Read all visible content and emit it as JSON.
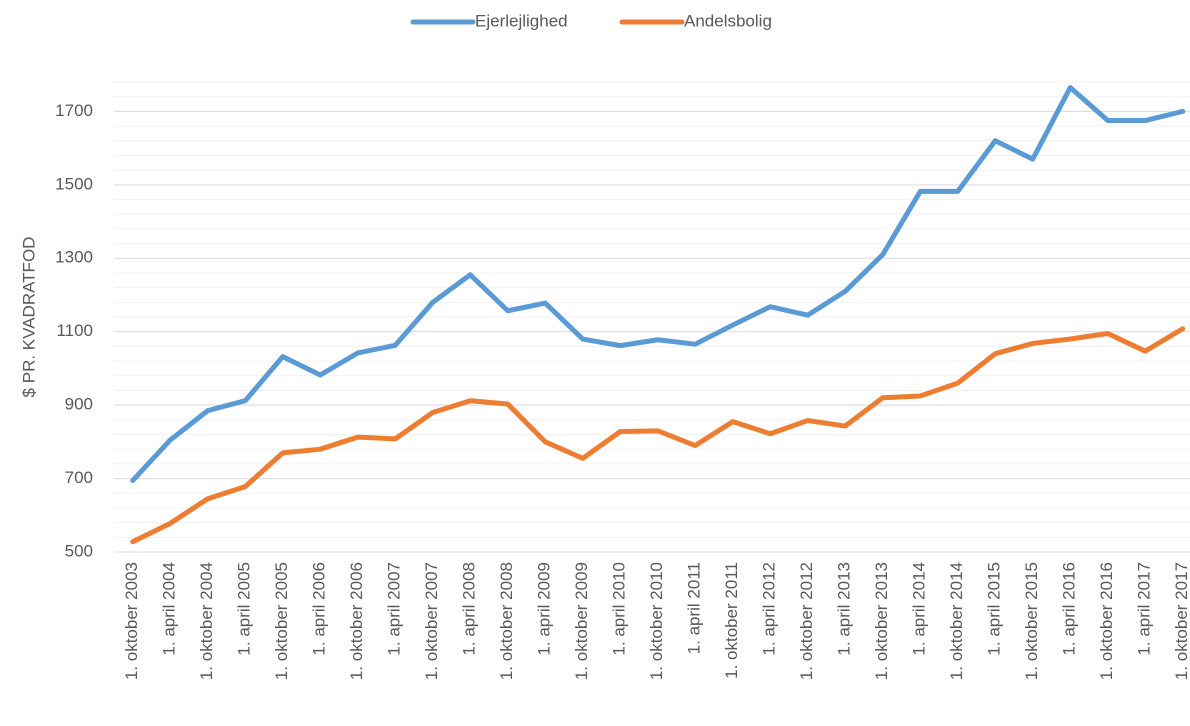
{
  "chart_data": {
    "type": "line",
    "y_label": "$ PR. KVADRATFOD",
    "categories": [
      "1. oktober 2003",
      "1. april 2004",
      "1. oktober 2004",
      "1. april 2005",
      "1. oktober 2005",
      "1. april 2006",
      "1. oktober 2006",
      "1. april 2007",
      "1. oktober 2007",
      "1. april 2008",
      "1. oktober 2008",
      "1. april 2009",
      "1. oktober 2009",
      "1. april 2010",
      "1. oktober 2010",
      "1. april 2011",
      "1. oktober 2011",
      "1. april 2012",
      "1. oktober 2012",
      "1. april 2013",
      "1. oktober 2013",
      "1. april 2014",
      "1. oktober 2014",
      "1. april 2015",
      "1. oktober 2015",
      "1. april 2016",
      "1. oktober 2016",
      "1. april 2017",
      "1. oktober 2017"
    ],
    "series": [
      {
        "name": "Ejerlejlighed",
        "color": "#5b9bd5",
        "values": [
          695,
          805,
          885,
          912,
          1032,
          982,
          1042,
          1063,
          1180,
          1255,
          1157,
          1178,
          1080,
          1062,
          1078,
          1066,
          1118,
          1168,
          1145,
          1210,
          1310,
          1482,
          1482,
          1620,
          1570,
          1765,
          1675,
          1675,
          1700
        ]
      },
      {
        "name": "Andelsbolig",
        "color": "#ed7d31",
        "values": [
          528,
          578,
          645,
          678,
          770,
          780,
          813,
          808,
          880,
          912,
          903,
          800,
          755,
          828,
          830,
          790,
          855,
          822,
          858,
          843,
          920,
          925,
          960,
          1040,
          1068,
          1080,
          1095,
          1047,
          1108
        ]
      }
    ],
    "ylim": [
      500,
      1780
    ],
    "yticks": [
      500,
      700,
      900,
      1100,
      1300,
      1500,
      1700
    ],
    "minor_yticks": [
      540,
      580,
      620,
      660,
      740,
      780,
      820,
      860,
      940,
      980,
      1020,
      1060,
      1140,
      1180,
      1220,
      1260,
      1340,
      1380,
      1420,
      1460,
      1540,
      1580,
      1620,
      1660,
      1740,
      1780
    ],
    "grid": true,
    "legend": "top"
  }
}
